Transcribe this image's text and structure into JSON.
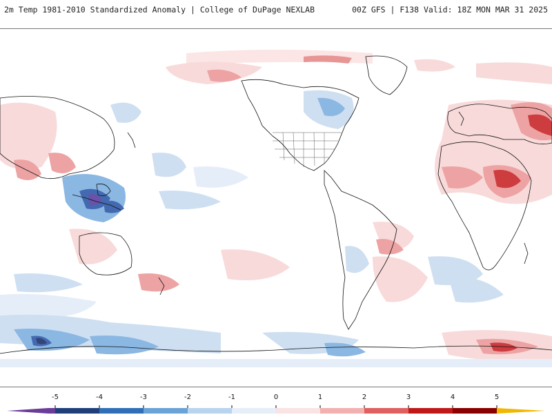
{
  "header": {
    "title_left": "2m Temp 1981-2010 Standardized Anomaly | College of DuPage NEXLAB",
    "title_right": "00Z GFS | F138 Valid: 18Z MON MAR 31 2025"
  },
  "colorbar": {
    "ticks": [
      "-5",
      "-4",
      "-3",
      "-2",
      "-1",
      "0",
      "1",
      "2",
      "3",
      "4",
      "5"
    ],
    "colors": [
      "#6a3d9a",
      "#1f3f7a",
      "#2f6fb8",
      "#6aa3d8",
      "#b8d4ee",
      "#e6eef8",
      "#fbe3e3",
      "#f2b0b0",
      "#e06060",
      "#c01818",
      "#8a0000",
      "#f0b800"
    ]
  },
  "map": {
    "anomaly_colors": {
      "light_blue": "#c9dcf0",
      "mid_blue": "#7fb0e0",
      "dark_blue": "#2f5aa8",
      "purple": "#5a3fa0",
      "light_red": "#f8d6d6",
      "mid_red": "#ec9a9a",
      "dark_red": "#c8282a"
    }
  }
}
